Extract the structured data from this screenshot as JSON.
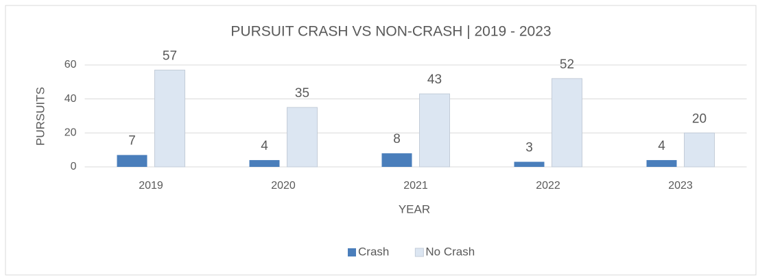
{
  "chart_data": {
    "type": "bar",
    "title": "PURSUIT CRASH VS NON-CRASH | 2019 - 2023",
    "x_label": "YEAR",
    "y_label": "PURSUITS",
    "categories": [
      "2019",
      "2020",
      "2021",
      "2022",
      "2023"
    ],
    "series": [
      {
        "name": "Crash",
        "color": "#4a7ebb",
        "values": [
          7,
          4,
          8,
          3,
          4
        ]
      },
      {
        "name": "No Crash",
        "color": "#dce6f2",
        "values": [
          57,
          35,
          43,
          52,
          20
        ]
      }
    ],
    "ylim": [
      0,
      60
    ],
    "yticks": [
      0,
      20,
      40,
      60
    ],
    "grid": true,
    "legend": "bottom"
  }
}
